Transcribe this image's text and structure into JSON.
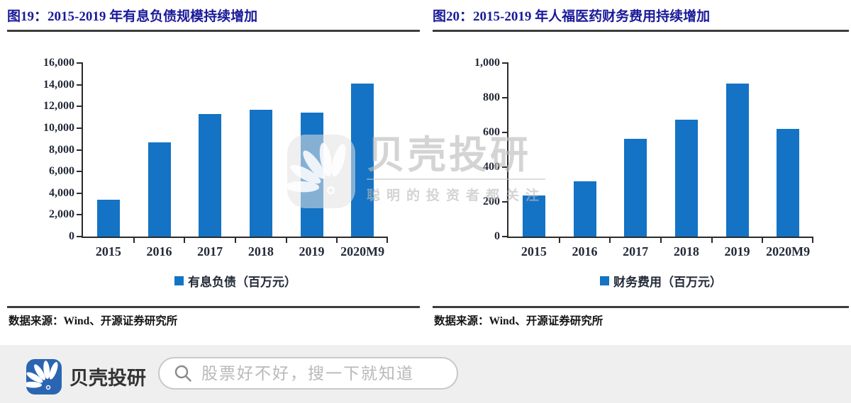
{
  "panels": [
    {
      "title": "图19：2015-2019 年有息负债规模持续增加",
      "source": "数据来源：Wind、开源证券研究所"
    },
    {
      "title": "图20：2015-2019 年人福医药财务费用持续增加",
      "source": "数据来源：Wind、开源证券研究所"
    }
  ],
  "chart_data": [
    {
      "type": "bar",
      "title": "2015-2019 年有息负债规模持续增加",
      "categories": [
        "2015",
        "2016",
        "2017",
        "2018",
        "2019",
        "2020M9"
      ],
      "values": [
        3400,
        8700,
        11300,
        11700,
        11400,
        14100
      ],
      "series_name": "有息负债（百万元）",
      "ylim": [
        0,
        16000
      ],
      "ytick_step": 2000,
      "ytick_labels": [
        "0",
        "2,000",
        "4,000",
        "6,000",
        "8,000",
        "10,000",
        "12,000",
        "14,000",
        "16,000"
      ],
      "bar_color": "#1473c4",
      "grid": false,
      "legend_position": "bottom-center"
    },
    {
      "type": "bar",
      "title": "2015-2019 年人福医药财务费用持续增加",
      "categories": [
        "2015",
        "2016",
        "2017",
        "2018",
        "2019",
        "2020M9"
      ],
      "values": [
        235,
        320,
        565,
        675,
        880,
        620
      ],
      "series_name": "财务费用（百万元）",
      "ylim": [
        0,
        1000
      ],
      "ytick_step": 200,
      "ytick_labels": [
        "0",
        "200",
        "400",
        "600",
        "800",
        "1,000"
      ],
      "bar_color": "#1473c4",
      "grid": false,
      "legend_position": "bottom-center"
    }
  ],
  "watermark": {
    "brand": "贝壳投研",
    "tagline": "聪明的投资者都关注"
  },
  "footer": {
    "brand": "贝壳投研",
    "search_placeholder": "股票好不好，搜一下就知道"
  },
  "colors": {
    "bar_blue": "#1473c4",
    "title_navy": "#1a1a99",
    "logo_blue": "#2a65b2",
    "footer_gray": "#efefef"
  }
}
